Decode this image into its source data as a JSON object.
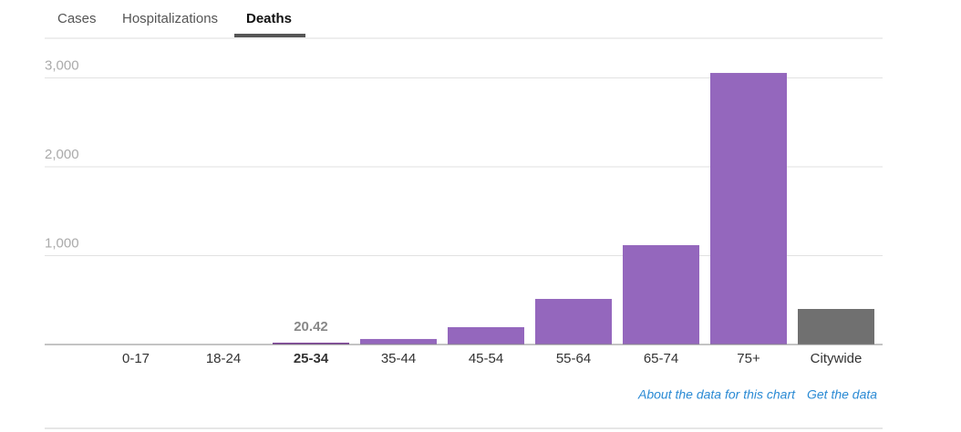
{
  "tabs": [
    "Cases",
    "Hospitalizations",
    "Deaths"
  ],
  "links": [
    "About the data for this chart",
    "Get the data"
  ],
  "chart_data": {
    "type": "bar",
    "categories": [
      "0-17",
      "18-24",
      "25-34",
      "35-44",
      "45-54",
      "55-64",
      "65-74",
      "75+",
      "Citywide"
    ],
    "values": [
      0,
      3,
      20.42,
      62,
      195,
      513,
      1118,
      3056,
      400
    ],
    "value_labels": [
      null,
      null,
      "20.42",
      null,
      null,
      null,
      null,
      null,
      null
    ],
    "colors": [
      "#9467bd",
      "#9467bd",
      "#7b3f97",
      "#9467bd",
      "#9467bd",
      "#9467bd",
      "#9467bd",
      "#9467bd",
      "#707070"
    ],
    "ylim": [
      0,
      3100
    ],
    "yticks": [
      {
        "value": 1000,
        "label": "1,000"
      },
      {
        "value": 2000,
        "label": "2,000"
      },
      {
        "value": 3000,
        "label": "3,000"
      }
    ],
    "grid": true
  }
}
